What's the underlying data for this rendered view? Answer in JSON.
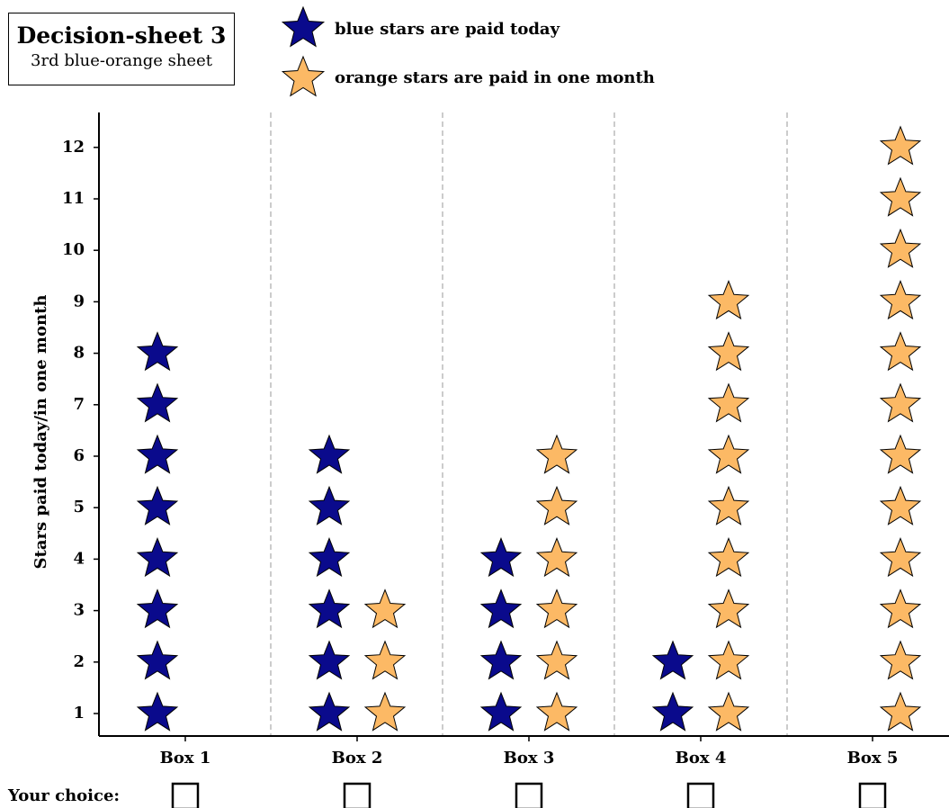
{
  "sheet": {
    "title": "Decision-sheet 3",
    "subtitle": "3rd blue-orange sheet"
  },
  "legend": [
    {
      "name": "blue stars are paid today",
      "color": "#0a0a8c",
      "icon": "star-icon"
    },
    {
      "name": "orange stars are paid in one month",
      "color": "#fcb965",
      "icon": "star-icon"
    }
  ],
  "choice_label": "Your choice:",
  "chart_data": {
    "type": "scatter",
    "ylabel": "Stars paid today/in one month",
    "xlabel": "",
    "categories": [
      "Box 1",
      "Box 2",
      "Box 3",
      "Box 4",
      "Box 5"
    ],
    "yticks": [
      1,
      2,
      3,
      4,
      5,
      6,
      7,
      8,
      9,
      10,
      11,
      12
    ],
    "ylim": [
      0.6,
      12.6
    ],
    "series": [
      {
        "name": "blue stars are paid today",
        "color": "#0a0a8c",
        "values": [
          8,
          6,
          4,
          2,
          0
        ]
      },
      {
        "name": "orange stars are paid in one month",
        "color": "#fcb965",
        "values": [
          0,
          3,
          6,
          9,
          12
        ]
      }
    ],
    "separators": "dashed",
    "legend_position": "top"
  }
}
